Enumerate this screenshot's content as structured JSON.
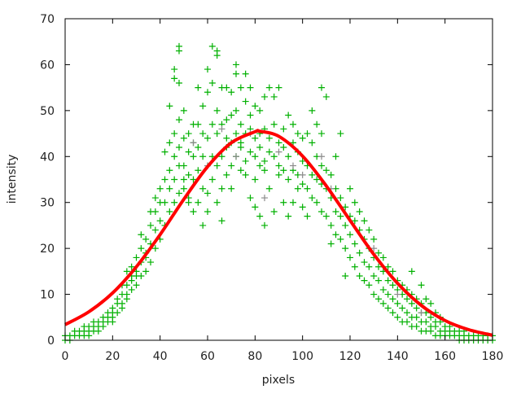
{
  "chart_data": {
    "type": "scatter",
    "title": "",
    "xlabel": "pixels",
    "ylabel": "intensity",
    "xlim": [
      0,
      180
    ],
    "ylim": [
      0,
      70
    ],
    "xticks": [
      0,
      20,
      40,
      60,
      80,
      100,
      120,
      140,
      160,
      180
    ],
    "yticks": [
      0,
      10,
      20,
      30,
      40,
      50,
      60,
      70
    ],
    "grid": false,
    "legend": "none",
    "colors": {
      "points": "#00b000",
      "points_secondary": "#8a8a8a",
      "fit": "#ff0000",
      "axis": "#000000"
    },
    "series": [
      {
        "marker": "plus",
        "columns": [
          [
            0,
            [
              0,
              1
            ]
          ],
          [
            2,
            [
              0,
              1
            ]
          ],
          [
            4,
            [
              1,
              2
            ]
          ],
          [
            6,
            [
              1,
              2
            ]
          ],
          [
            8,
            [
              1,
              2,
              3
            ]
          ],
          [
            10,
            [
              1,
              2,
              3
            ]
          ],
          [
            12,
            [
              2,
              3,
              4
            ]
          ],
          [
            14,
            [
              2,
              3,
              4
            ]
          ],
          [
            16,
            [
              3,
              4,
              5
            ]
          ],
          [
            18,
            [
              4,
              5,
              6
            ]
          ],
          [
            20,
            [
              4,
              5,
              6,
              7
            ]
          ],
          [
            22,
            [
              6,
              8,
              9
            ]
          ],
          [
            24,
            [
              7,
              8,
              10,
              12
            ]
          ],
          [
            26,
            [
              9,
              10,
              12,
              15
            ]
          ],
          [
            28,
            [
              11,
              13,
              14,
              16
            ]
          ],
          [
            30,
            [
              12,
              14,
              15,
              18
            ]
          ],
          [
            32,
            [
              14,
              17,
              20,
              23
            ]
          ],
          [
            34,
            [
              15,
              18,
              19,
              22
            ]
          ],
          [
            36,
            [
              17,
              21,
              25,
              28
            ]
          ],
          [
            38,
            [
              20,
              24,
              28,
              31
            ]
          ],
          [
            40,
            [
              22,
              26,
              30,
              33
            ]
          ],
          [
            42,
            [
              25,
              30,
              35,
              41
            ]
          ],
          [
            44,
            [
              28,
              33,
              37,
              43,
              51
            ]
          ],
          [
            46,
            [
              30,
              35,
              40,
              45,
              57,
              59
            ]
          ],
          [
            48,
            [
              32,
              38,
              42,
              48,
              56,
              63,
              64
            ]
          ],
          [
            50,
            [
              33,
              35,
              38,
              44,
              50
            ]
          ],
          [
            52,
            [
              30,
              31,
              36,
              41,
              45
            ]
          ],
          [
            54,
            [
              28,
              35,
              40,
              43,
              47
            ]
          ],
          [
            56,
            [
              30,
              37,
              42,
              47,
              55
            ]
          ],
          [
            58,
            [
              25,
              33,
              40,
              45,
              51
            ]
          ],
          [
            60,
            [
              28,
              32,
              38,
              44,
              54,
              59
            ]
          ],
          [
            62,
            [
              35,
              40,
              47,
              56,
              64
            ]
          ],
          [
            64,
            [
              30,
              38,
              45,
              50,
              62,
              63
            ]
          ],
          [
            66,
            [
              26,
              33,
              40,
              47,
              55
            ]
          ],
          [
            68,
            [
              36,
              42,
              44,
              48,
              55
            ]
          ],
          [
            70,
            [
              33,
              38,
              43,
              49,
              54
            ]
          ],
          [
            72,
            [
              40,
              45,
              50,
              58,
              60
            ]
          ],
          [
            74,
            [
              37,
              42,
              43,
              47,
              55
            ]
          ],
          [
            76,
            [
              36,
              39,
              45,
              52,
              58
            ]
          ],
          [
            78,
            [
              31,
              41,
              46,
              49,
              55
            ]
          ],
          [
            80,
            [
              29,
              35,
              40,
              44,
              51
            ]
          ],
          [
            82,
            [
              27,
              38,
              42,
              45,
              50
            ]
          ],
          [
            84,
            [
              25,
              37,
              39,
              46,
              53
            ]
          ],
          [
            86,
            [
              33,
              41,
              44,
              55
            ]
          ],
          [
            88,
            [
              28,
              40,
              47,
              53
            ]
          ],
          [
            90,
            [
              36,
              38,
              43,
              55
            ]
          ],
          [
            92,
            [
              30,
              37,
              42,
              46
            ]
          ],
          [
            94,
            [
              27,
              35,
              40,
              49
            ]
          ],
          [
            96,
            [
              30,
              37,
              43,
              47
            ]
          ],
          [
            98,
            [
              33,
              36,
              41,
              45
            ]
          ],
          [
            100,
            [
              29,
              34,
              39,
              44
            ]
          ],
          [
            102,
            [
              27,
              33,
              38,
              45
            ]
          ],
          [
            104,
            [
              31,
              36,
              43,
              50
            ]
          ],
          [
            106,
            [
              30,
              35,
              40,
              47
            ]
          ],
          [
            108,
            [
              28,
              34,
              38,
              45,
              55
            ]
          ],
          [
            110,
            [
              27,
              33,
              37,
              53
            ]
          ],
          [
            112,
            [
              21,
              25,
              31,
              36
            ]
          ],
          [
            114,
            [
              23,
              28,
              33,
              40
            ]
          ],
          [
            116,
            [
              22,
              27,
              31,
              45
            ]
          ],
          [
            118,
            [
              14,
              20,
              25,
              29
            ]
          ],
          [
            120,
            [
              18,
              23,
              27,
              33
            ]
          ],
          [
            122,
            [
              16,
              21,
              26,
              30
            ]
          ],
          [
            124,
            [
              14,
              19,
              24,
              28
            ]
          ],
          [
            126,
            [
              13,
              17,
              22,
              26
            ]
          ],
          [
            128,
            [
              12,
              16,
              20,
              24
            ]
          ],
          [
            130,
            [
              10,
              14,
              18,
              22
            ]
          ],
          [
            132,
            [
              9,
              13,
              16,
              19
            ]
          ],
          [
            134,
            [
              8,
              11,
              15,
              18
            ]
          ],
          [
            136,
            [
              7,
              10,
              13,
              16
            ]
          ],
          [
            138,
            [
              6,
              9,
              12,
              15
            ]
          ],
          [
            140,
            [
              5,
              8,
              11,
              13
            ]
          ],
          [
            142,
            [
              4,
              7,
              10,
              12
            ]
          ],
          [
            144,
            [
              4,
              6,
              9,
              11
            ]
          ],
          [
            146,
            [
              3,
              5,
              8,
              10,
              15
            ]
          ],
          [
            148,
            [
              3,
              5,
              7,
              9
            ]
          ],
          [
            150,
            [
              2,
              4,
              6,
              8,
              12
            ]
          ],
          [
            152,
            [
              2,
              4,
              6,
              9
            ]
          ],
          [
            154,
            [
              2,
              3,
              5,
              8
            ]
          ],
          [
            156,
            [
              1,
              3,
              4,
              6
            ]
          ],
          [
            158,
            [
              1,
              2,
              4,
              5
            ]
          ],
          [
            160,
            [
              1,
              2,
              3
            ]
          ],
          [
            162,
            [
              1,
              2,
              3
            ]
          ],
          [
            164,
            [
              1,
              2
            ]
          ],
          [
            166,
            [
              0,
              1,
              2
            ]
          ],
          [
            168,
            [
              0,
              1,
              2
            ]
          ],
          [
            170,
            [
              0,
              1
            ]
          ],
          [
            172,
            [
              0,
              1
            ]
          ],
          [
            174,
            [
              0,
              1
            ]
          ],
          [
            176,
            [
              0,
              1
            ]
          ],
          [
            178,
            [
              0,
              1
            ]
          ],
          [
            180,
            [
              0,
              1
            ]
          ]
        ]
      },
      {
        "marker": "plus",
        "points": [
          [
            54,
            43
          ],
          [
            60,
            38
          ],
          [
            66,
            46
          ],
          [
            72,
            40
          ],
          [
            78,
            45
          ],
          [
            84,
            31
          ],
          [
            90,
            41
          ],
          [
            96,
            38
          ],
          [
            100,
            36
          ],
          [
            108,
            40
          ],
          [
            112,
            33
          ],
          [
            130,
            20
          ],
          [
            140,
            10
          ],
          [
            150,
            6
          ]
        ]
      },
      {
        "marker": "line",
        "x": [
          0,
          10,
          20,
          30,
          40,
          50,
          60,
          70,
          80,
          82,
          90,
          100,
          110,
          120,
          130,
          140,
          150,
          160,
          170,
          180
        ],
        "y": [
          3.4,
          6.2,
          10.3,
          16.0,
          23.0,
          30.7,
          37.8,
          43.0,
          45.4,
          45.5,
          44.4,
          40.1,
          33.6,
          26.1,
          18.7,
          12.4,
          7.6,
          4.3,
          2.3,
          1.1
        ]
      }
    ]
  }
}
